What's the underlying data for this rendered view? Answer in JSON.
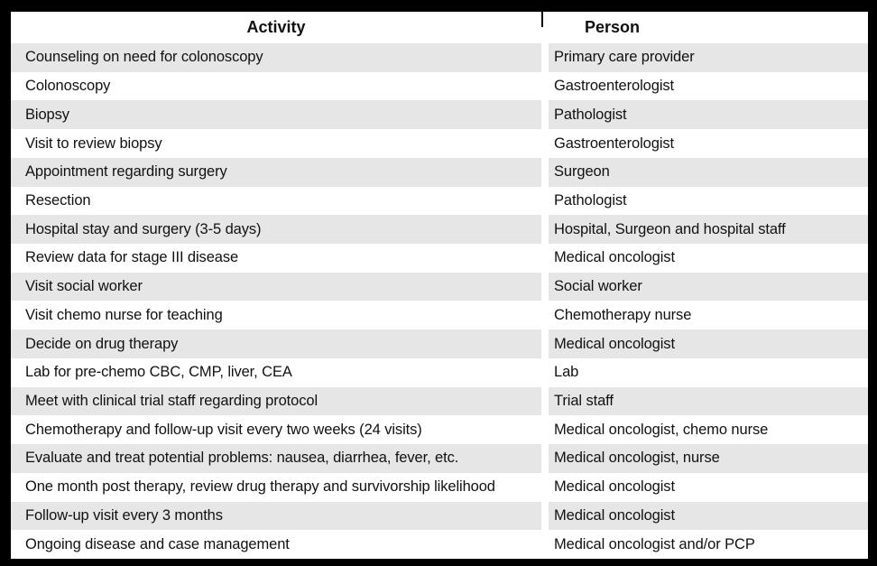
{
  "colors": {
    "row_shade": "#e6e6e6",
    "border": "#000000",
    "text": "#111111",
    "background": "#ffffff"
  },
  "table": {
    "columns": [
      {
        "label": "Activity"
      },
      {
        "label": "Person"
      }
    ],
    "rows": [
      {
        "activity": "Counseling on need for colonoscopy",
        "person": "Primary care provider"
      },
      {
        "activity": "Colonoscopy",
        "person": "Gastroenterologist"
      },
      {
        "activity": "Biopsy",
        "person": "Pathologist"
      },
      {
        "activity": "Visit to review biopsy",
        "person": "Gastroenterologist"
      },
      {
        "activity": "Appointment regarding surgery",
        "person": "Surgeon"
      },
      {
        "activity": "Resection",
        "person": "Pathologist"
      },
      {
        "activity": "Hospital stay and surgery (3-5 days)",
        "person": "Hospital, Surgeon and hospital staff"
      },
      {
        "activity": "Review data for stage III disease",
        "person": "Medical oncologist"
      },
      {
        "activity": "Visit social worker",
        "person": "Social worker"
      },
      {
        "activity": "Visit chemo nurse for teaching",
        "person": "Chemotherapy nurse"
      },
      {
        "activity": "Decide on drug therapy",
        "person": "Medical oncologist"
      },
      {
        "activity": "Lab for pre-chemo CBC, CMP, liver, CEA",
        "person": "Lab"
      },
      {
        "activity": "Meet with clinical trial staff regarding protocol",
        "person": "Trial staff"
      },
      {
        "activity": "Chemotherapy and follow-up visit every two weeks (24 visits)",
        "person": "Medical oncologist, chemo nurse"
      },
      {
        "activity": "Evaluate and treat potential problems: nausea, diarrhea, fever, etc.",
        "person": "Medical oncologist, nurse"
      },
      {
        "activity": "One month post therapy, review drug therapy and survivorship likelihood",
        "person": "Medical oncologist"
      },
      {
        "activity": "Follow-up visit every 3 months",
        "person": "Medical oncologist"
      },
      {
        "activity": "Ongoing disease and case management",
        "person": "Medical oncologist and/or PCP"
      }
    ]
  }
}
